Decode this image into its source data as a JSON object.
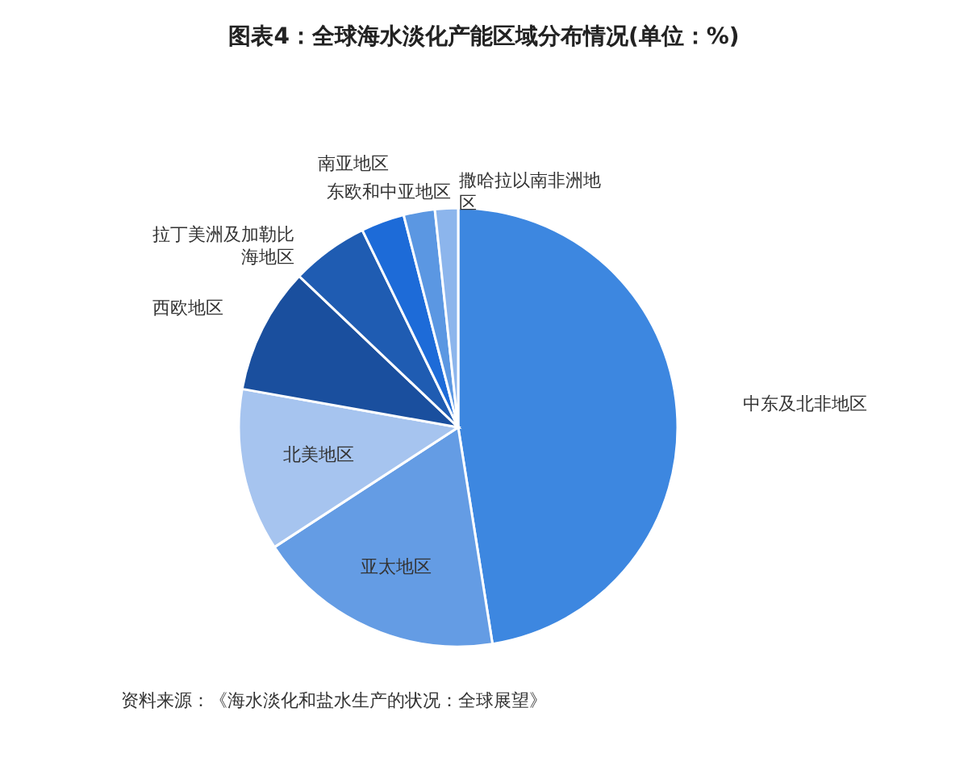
{
  "chart_data": {
    "type": "pie",
    "title": "图表4：全球海水淡化产能区域分布情况(单位：%)",
    "categories": [
      "中东及北非地区",
      "亚太地区",
      "北美地区",
      "西欧地区",
      "拉丁美洲及加勒比海地区",
      "南亚地区",
      "东欧和中亚地区",
      "撒哈拉以南非洲地区"
    ],
    "values": [
      47.5,
      18.3,
      12.0,
      9.3,
      5.7,
      3.2,
      2.3,
      1.7
    ],
    "colors": [
      "#3d87e0",
      "#649ce4",
      "#a6c4ef",
      "#1a4f9e",
      "#1f5cb2",
      "#1d6bd8",
      "#5b97e2",
      "#8cb5ec"
    ],
    "annotations": [
      "资料来源：《海水淡化和盐水生产的状况：全球展望》"
    ]
  }
}
